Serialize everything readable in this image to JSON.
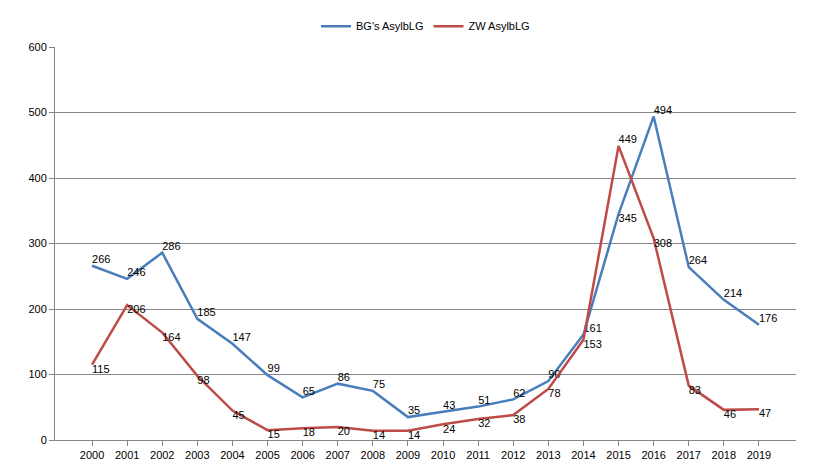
{
  "chart_data": {
    "type": "line",
    "categories": [
      "2000",
      "2001",
      "2002",
      "2003",
      "2004",
      "2005",
      "2006",
      "2007",
      "2008",
      "2009",
      "2010",
      "2011",
      "2012",
      "2013",
      "2014",
      "2015",
      "2016",
      "2017",
      "2018",
      "2019"
    ],
    "series": [
      {
        "name": "BG's AsylbLG",
        "color": "#4a7ebb",
        "values": [
          266,
          246,
          286,
          185,
          147,
          99,
          65,
          86,
          75,
          35,
          43,
          51,
          62,
          90,
          161,
          345,
          494,
          264,
          214,
          176
        ]
      },
      {
        "name": "ZW AsylbLG",
        "color": "#be4b48",
        "values": [
          115,
          206,
          164,
          98,
          45,
          15,
          18,
          20,
          14,
          14,
          24,
          32,
          38,
          78,
          153,
          449,
          308,
          83,
          46,
          47
        ]
      }
    ],
    "ylim": [
      0,
      600
    ],
    "yticks": [
      0,
      100,
      200,
      300,
      400,
      500,
      600
    ],
    "grid": true,
    "legend": "top",
    "data_labels": true
  }
}
